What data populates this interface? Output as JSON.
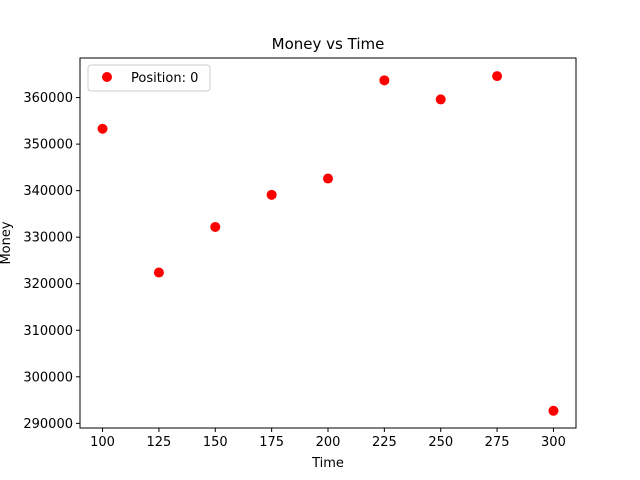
{
  "chart_data": {
    "type": "scatter",
    "title": "Money vs Time",
    "xlabel": "Time",
    "ylabel": "Money",
    "xlim": [
      90,
      310
    ],
    "ylim": [
      289000,
      368500
    ],
    "xticks": [
      100,
      125,
      150,
      175,
      200,
      225,
      250,
      275,
      300
    ],
    "yticks": [
      290000,
      300000,
      310000,
      320000,
      330000,
      340000,
      350000,
      360000
    ],
    "grid": false,
    "legend_position": "top-left",
    "series": [
      {
        "name": "Position: 0",
        "color": "#ff0000",
        "marker": "circle",
        "x": [
          100,
          125,
          150,
          175,
          200,
          225,
          250,
          275,
          300
        ],
        "y": [
          353300,
          322400,
          332200,
          339100,
          342600,
          363700,
          359600,
          364600,
          292700
        ]
      }
    ]
  }
}
